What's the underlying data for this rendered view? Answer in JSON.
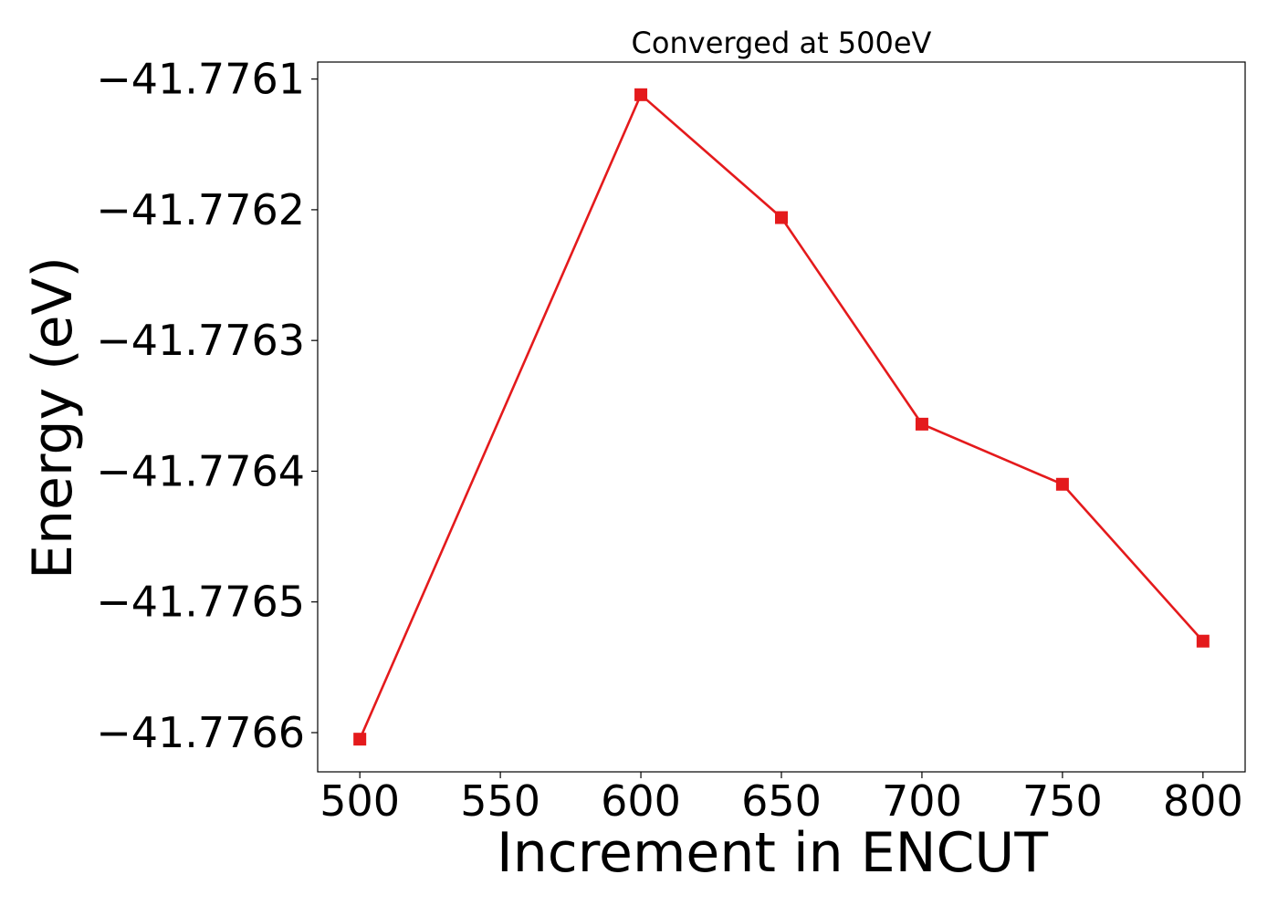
{
  "chart_data": {
    "type": "line",
    "title": "Converged at 500eV",
    "xlabel": "Increment in ENCUT",
    "ylabel": "Energy (eV)",
    "x": [
      500,
      600,
      650,
      700,
      750,
      800
    ],
    "series": [
      {
        "values": [
          -41.776605,
          -41.776112,
          -41.776206,
          -41.776364,
          -41.77641,
          -41.77653
        ],
        "color": "#e41a1c",
        "marker": "square"
      }
    ],
    "xlim": [
      485,
      815
    ],
    "ylim": [
      -41.77663,
      -41.776087
    ],
    "xticks": [
      500,
      550,
      600,
      650,
      700,
      750,
      800
    ],
    "xtick_labels": [
      "500",
      "550",
      "600",
      "650",
      "700",
      "750",
      "800"
    ],
    "yticks": [
      -41.7761,
      -41.7762,
      -41.7763,
      -41.7764,
      -41.7765,
      -41.7766
    ],
    "ytick_labels": [
      "−41.7761",
      "−41.7762",
      "−41.7763",
      "−41.7764",
      "−41.7765",
      "−41.7766"
    ],
    "grid": false,
    "legend": false
  }
}
